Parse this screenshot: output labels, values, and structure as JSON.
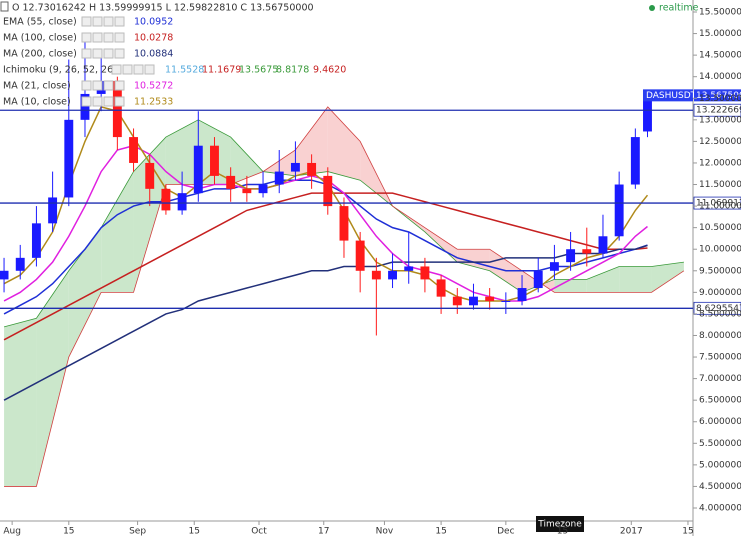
{
  "chart_data": {
    "type": "candlestick",
    "header": "O 12.73016242 H 13.59999915 L 12.59822810 C 13.56750000",
    "realtime": "realtime",
    "timezone": "Timezone",
    "up_color": "#1a1aff",
    "down_color": "#ff1a1a",
    "x": [
      -2,
      2,
      6,
      10,
      14,
      18,
      22,
      26,
      30,
      34,
      38,
      42,
      46,
      50,
      54,
      58,
      62,
      66,
      70,
      74,
      78,
      82,
      86,
      90,
      94,
      98,
      102,
      106,
      110,
      114,
      118,
      122,
      126,
      130,
      134,
      138,
      142,
      146,
      150,
      154,
      157
    ],
    "open": [
      9.3,
      9.5,
      9.8,
      10.6,
      11.2,
      13.0,
      13.6,
      13.9,
      12.6,
      12.0,
      11.4,
      10.9,
      11.3,
      12.4,
      11.7,
      11.4,
      11.3,
      11.5,
      11.8,
      12.0,
      11.7,
      11.0,
      10.2,
      9.5,
      9.3,
      9.5,
      9.6,
      9.3,
      8.9,
      8.7,
      8.9,
      8.8,
      8.8,
      9.1,
      9.5,
      9.7,
      10.0,
      9.9,
      10.3,
      11.5,
      12.73016242
    ],
    "high": [
      9.8,
      10.1,
      11.0,
      11.8,
      14.4,
      15.0,
      14.6,
      14.0,
      12.8,
      12.2,
      11.5,
      11.8,
      13.2,
      12.6,
      11.9,
      11.7,
      11.8,
      12.3,
      12.5,
      12.2,
      11.9,
      11.2,
      10.4,
      9.8,
      9.9,
      10.4,
      9.8,
      9.4,
      9.1,
      9.2,
      9.1,
      9.0,
      9.4,
      9.8,
      10.1,
      10.4,
      10.5,
      10.8,
      11.8,
      12.8,
      13.59999915
    ],
    "low": [
      9.0,
      9.3,
      9.6,
      10.4,
      11.0,
      12.6,
      13.2,
      12.3,
      11.8,
      11.0,
      10.8,
      10.8,
      11.1,
      11.5,
      11.1,
      11.1,
      11.2,
      11.3,
      11.6,
      11.4,
      10.8,
      9.8,
      9.0,
      8.0,
      9.1,
      9.2,
      9.0,
      8.5,
      8.5,
      8.6,
      8.6,
      8.5,
      8.7,
      9.0,
      9.3,
      9.5,
      9.6,
      9.8,
      10.2,
      11.4,
      12.5982281
    ],
    "close": [
      9.5,
      9.8,
      10.6,
      11.2,
      13.0,
      13.6,
      13.9,
      12.6,
      12.0,
      11.4,
      10.9,
      11.3,
      12.4,
      11.7,
      11.4,
      11.3,
      11.5,
      11.8,
      12.0,
      11.7,
      11.0,
      10.2,
      9.5,
      9.3,
      9.5,
      9.6,
      9.3,
      8.9,
      8.7,
      8.9,
      8.8,
      8.8,
      9.1,
      9.5,
      9.7,
      10.0,
      9.9,
      10.3,
      11.5,
      12.6,
      13.5675
    ],
    "series": [
      {
        "name": "EMA (55, close)",
        "color": "#1f2fd6",
        "value_label": "10.0952",
        "values": [
          8.5,
          8.7,
          8.9,
          9.2,
          9.6,
          10.0,
          10.5,
          10.8,
          11.0,
          11.1,
          11.1,
          11.2,
          11.3,
          11.4,
          11.4,
          11.5,
          11.5,
          11.6,
          11.6,
          11.6,
          11.5,
          11.3,
          11.0,
          10.7,
          10.5,
          10.4,
          10.2,
          10.0,
          9.8,
          9.7,
          9.6,
          9.5,
          9.5,
          9.5,
          9.6,
          9.6,
          9.7,
          9.8,
          9.9,
          10.0,
          10.0952
        ]
      },
      {
        "name": "MA (100, close)",
        "color": "#c62020",
        "value_label": "10.0278",
        "values": [
          7.9,
          8.1,
          8.3,
          8.5,
          8.7,
          8.9,
          9.1,
          9.3,
          9.5,
          9.7,
          9.9,
          10.1,
          10.3,
          10.5,
          10.7,
          10.9,
          11.0,
          11.1,
          11.2,
          11.3,
          11.3,
          11.3,
          11.3,
          11.3,
          11.3,
          11.2,
          11.1,
          11.0,
          10.9,
          10.8,
          10.7,
          10.6,
          10.5,
          10.4,
          10.3,
          10.2,
          10.1,
          10.0,
          10.0,
          10.0,
          10.0278
        ]
      },
      {
        "name": "MA (200, close)",
        "color": "#22307a",
        "value_label": "10.0884",
        "values": [
          6.5,
          6.7,
          6.9,
          7.1,
          7.3,
          7.5,
          7.7,
          7.9,
          8.1,
          8.3,
          8.5,
          8.6,
          8.8,
          8.9,
          9.0,
          9.1,
          9.2,
          9.3,
          9.4,
          9.5,
          9.5,
          9.6,
          9.6,
          9.6,
          9.7,
          9.7,
          9.7,
          9.7,
          9.7,
          9.7,
          9.7,
          9.8,
          9.8,
          9.8,
          9.8,
          9.9,
          9.9,
          9.9,
          10.0,
          10.0,
          10.0884
        ]
      },
      {
        "name": "MA (21, close)",
        "color": "#e020e0",
        "value_label": "10.5272",
        "values": [
          8.8,
          9.0,
          9.3,
          9.7,
          10.3,
          11.0,
          11.8,
          12.3,
          12.4,
          12.2,
          11.8,
          11.5,
          11.4,
          11.5,
          11.5,
          11.4,
          11.4,
          11.5,
          11.6,
          11.7,
          11.6,
          11.3,
          10.8,
          10.3,
          9.9,
          9.6,
          9.5,
          9.4,
          9.2,
          9.0,
          8.9,
          8.8,
          8.8,
          8.9,
          9.1,
          9.3,
          9.5,
          9.7,
          9.9,
          10.3,
          10.5272
        ]
      },
      {
        "name": "MA (10, close)",
        "color": "#b08a1a",
        "value_label": "11.2533",
        "values": [
          9.2,
          9.4,
          9.8,
          10.4,
          11.5,
          12.5,
          13.3,
          13.2,
          12.6,
          12.0,
          11.4,
          11.2,
          11.5,
          11.8,
          11.6,
          11.4,
          11.4,
          11.5,
          11.7,
          11.8,
          11.5,
          10.9,
          10.2,
          9.7,
          9.5,
          9.5,
          9.4,
          9.1,
          8.9,
          8.8,
          8.8,
          8.8,
          8.9,
          9.1,
          9.4,
          9.6,
          9.8,
          9.9,
          10.3,
          10.9,
          11.2533
        ]
      }
    ],
    "ichimoku": {
      "name": "Ichimoku (9, 26, 52, 26)",
      "value_labels": [
        {
          "label": "11.5528",
          "color": "#55aadd"
        },
        {
          "label": "11.1679",
          "color": "#c62020"
        },
        {
          "label": "13.5675",
          "color": "#3a9a3a"
        },
        {
          "label": "8.8178",
          "color": "#3a9a3a"
        },
        {
          "label": "9.4620",
          "color": "#c62020"
        }
      ],
      "up_color": "#b9dfb9",
      "down_color": "#f7c2c2",
      "span_a_color": "#3a9a3a",
      "span_b_color": "#d04040",
      "x": [
        -2,
        6,
        14,
        22,
        30,
        38,
        46,
        54,
        62,
        70,
        78,
        86,
        94,
        102,
        110,
        118,
        126,
        134,
        142,
        150,
        158,
        166
      ],
      "span_a": [
        8.2,
        8.4,
        9.5,
        10.5,
        11.8,
        12.6,
        13.0,
        12.6,
        11.8,
        11.7,
        11.8,
        11.6,
        11.0,
        10.4,
        9.7,
        9.5,
        9.0,
        9.3,
        9.3,
        9.6,
        9.6,
        9.7
      ],
      "span_b": [
        4.5,
        4.5,
        7.5,
        9.0,
        9.0,
        11.5,
        11.5,
        11.5,
        11.8,
        12.3,
        13.3,
        12.5,
        11.0,
        10.5,
        10.0,
        10.0,
        9.5,
        9.0,
        9.0,
        9.0,
        9.0,
        9.5
      ]
    },
    "levels": [
      {
        "value": 13.2226698,
        "label": "13.2226698"
      },
      {
        "value": 11.0699121,
        "label": "11.0699121"
      },
      {
        "value": 8.62955474,
        "label": "8.62955474"
      }
    ],
    "level_color": "#1f2fb0",
    "price_tag": {
      "symbol": "DASHUSDT",
      "value": 13.5675,
      "label": "13.5675000",
      "color": "#2a3ff0"
    },
    "xlim": [
      -3,
      168
    ],
    "xticks": [
      {
        "value": 0,
        "label": "Aug"
      },
      {
        "value": 14,
        "label": "15"
      },
      {
        "value": 31,
        "label": "Sep"
      },
      {
        "value": 45,
        "label": "15"
      },
      {
        "value": 61,
        "label": "Oct"
      },
      {
        "value": 77,
        "label": "17"
      },
      {
        "value": 92,
        "label": "Nov"
      },
      {
        "value": 106,
        "label": "15"
      },
      {
        "value": 122,
        "label": "Dec"
      },
      {
        "value": 136,
        "label": "15"
      },
      {
        "value": 153,
        "label": "2017"
      },
      {
        "value": 167,
        "label": "15"
      }
    ],
    "ylim": [
      4.0,
      15.5
    ],
    "yticks": [
      {
        "value": 4.0,
        "label": "4.00000000"
      },
      {
        "value": 4.5,
        "label": "4.50000000"
      },
      {
        "value": 5.0,
        "label": "5.00000000"
      },
      {
        "value": 5.5,
        "label": "5.50000000"
      },
      {
        "value": 6.0,
        "label": "6.00000000"
      },
      {
        "value": 6.5,
        "label": "6.50000000"
      },
      {
        "value": 7.0,
        "label": "7.00000000"
      },
      {
        "value": 7.5,
        "label": "7.50000000"
      },
      {
        "value": 8.0,
        "label": "8.00000000"
      },
      {
        "value": 8.5,
        "label": "8.50000000"
      },
      {
        "value": 9.0,
        "label": "9.00000000"
      },
      {
        "value": 9.5,
        "label": "9.50000000"
      },
      {
        "value": 10.0,
        "label": "10.0000000"
      },
      {
        "value": 10.5,
        "label": "10.5000000"
      },
      {
        "value": 11.0,
        "label": "11.0000000"
      },
      {
        "value": 11.5,
        "label": "11.5000000"
      },
      {
        "value": 12.0,
        "label": "12.0000000"
      },
      {
        "value": 12.5,
        "label": "12.5000000"
      },
      {
        "value": 13.0,
        "label": "13.0000000"
      },
      {
        "value": 13.5,
        "label": "13.5000000"
      },
      {
        "value": 14.0,
        "label": "14.0000000"
      },
      {
        "value": 14.5,
        "label": "14.5000000"
      },
      {
        "value": 15.0,
        "label": "15.0000000"
      },
      {
        "value": 15.5,
        "label": "15.5000000"
      }
    ]
  }
}
